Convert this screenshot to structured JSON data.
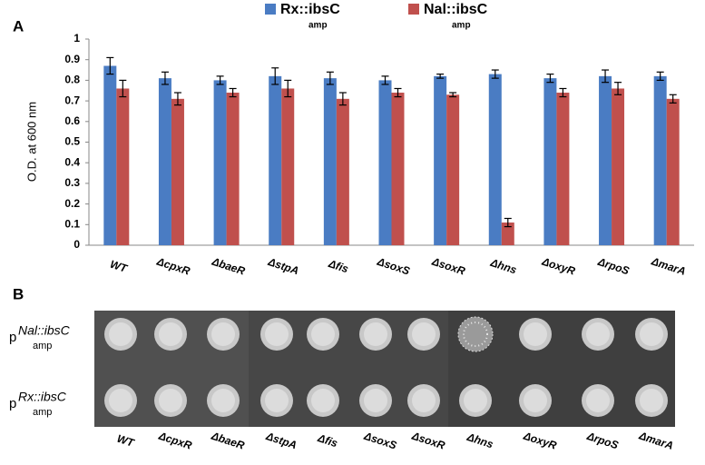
{
  "chart_data": {
    "type": "bar",
    "panel_label": "A",
    "y_label": "O.D. at 600 nm",
    "categories": [
      "WT",
      "ΔcpxR",
      "ΔbaeR",
      "ΔstpA",
      "Δfis",
      "ΔsoxS",
      "ΔsoxR",
      "Δhns",
      "ΔoxyR",
      "ΔrpoS",
      "ΔmarA"
    ],
    "series": [
      {
        "name": "Rx::ibsC",
        "subscript": "amp",
        "color": "#4a7cc3",
        "values": [
          0.87,
          0.81,
          0.8,
          0.82,
          0.81,
          0.8,
          0.82,
          0.83,
          0.81,
          0.82,
          0.82
        ],
        "errors": [
          0.04,
          0.03,
          0.02,
          0.04,
          0.03,
          0.02,
          0.01,
          0.02,
          0.02,
          0.03,
          0.02
        ]
      },
      {
        "name": "Nal::ibsC",
        "subscript": "amp",
        "color": "#c0504d",
        "values": [
          0.76,
          0.71,
          0.74,
          0.76,
          0.71,
          0.74,
          0.73,
          0.11,
          0.74,
          0.76,
          0.71
        ],
        "errors": [
          0.04,
          0.03,
          0.02,
          0.04,
          0.03,
          0.02,
          0.01,
          0.02,
          0.02,
          0.03,
          0.02
        ]
      }
    ],
    "ylim": [
      0,
      1
    ],
    "yticks": [
      0,
      0.1,
      0.2,
      0.3,
      0.4,
      0.5,
      0.6,
      0.7,
      0.8,
      0.9,
      1
    ],
    "grid": false
  },
  "panel_b": {
    "panel_label": "B",
    "row_labels": [
      {
        "prefix": "p",
        "name": "Nal::ibsC",
        "subscript": "amp"
      },
      {
        "prefix": "p",
        "name": "Rx::ibsC",
        "subscript": "amp"
      }
    ],
    "column_labels": [
      "WT",
      "ΔcpxR",
      "ΔbaeR",
      "ΔstpA",
      "Δfis",
      "ΔsoxS",
      "ΔsoxR",
      "Δhns",
      "ΔoxyR",
      "ΔrpoS",
      "ΔmarA"
    ]
  }
}
